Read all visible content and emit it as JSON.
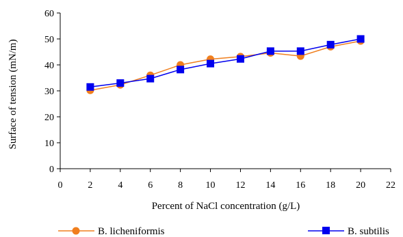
{
  "chart_data": {
    "type": "line",
    "xlabel": "Percent of NaCl concentration (g/L)",
    "ylabel": "Surface of tension (mN/m)",
    "xlim": [
      0,
      22
    ],
    "ylim": [
      0,
      60
    ],
    "x_ticks": [
      0,
      2,
      4,
      6,
      8,
      10,
      12,
      14,
      16,
      18,
      20,
      22
    ],
    "y_ticks": [
      0,
      10,
      20,
      30,
      40,
      50,
      60
    ],
    "x_tick_labels": [
      "0",
      "2",
      "4",
      "6",
      "8",
      "10",
      "12",
      "14",
      "16",
      "18",
      "20",
      "22"
    ],
    "y_tick_labels": [
      "0",
      "10",
      "20",
      "30",
      "40",
      "50",
      "60"
    ],
    "grid": false,
    "legend": "bottom",
    "x": [
      2,
      4,
      6,
      8,
      10,
      12,
      14,
      16,
      18,
      20
    ],
    "series": [
      {
        "name": "B. licheniformis",
        "color": "#f07f1e",
        "marker": "circle",
        "values": [
          30.2,
          32.3,
          36.0,
          40.0,
          42.2,
          43.2,
          44.6,
          43.4,
          47.0,
          49.2
        ]
      },
      {
        "name": "B.  subtilis",
        "color": "#0000ee",
        "marker": "square",
        "values": [
          31.5,
          33.0,
          34.7,
          38.2,
          40.5,
          42.3,
          45.3,
          45.3,
          47.8,
          50.0
        ]
      }
    ]
  }
}
